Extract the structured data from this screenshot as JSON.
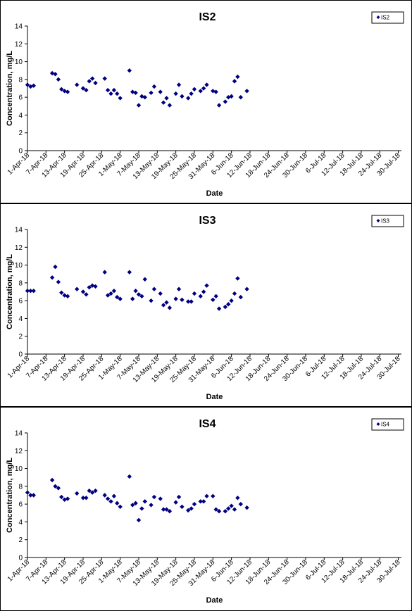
{
  "chart_data": [
    {
      "type": "scatter",
      "title": "IS2",
      "xlabel": "Date",
      "ylabel": "Concentration, mg/L",
      "ylim": [
        0,
        14
      ],
      "yticks": [
        0,
        2,
        4,
        6,
        8,
        10,
        12,
        14
      ],
      "xlim": [
        "2018-04-01",
        "2018-07-31"
      ],
      "xtick_labels": [
        "1-Apr-18",
        "7-Apr-18",
        "13-Apr-18",
        "19-Apr-18",
        "25-Apr-18",
        "1-May-18",
        "7-May-18",
        "13-May-18",
        "19-May-18",
        "25-May-18",
        "31-May-18",
        "6-Jun-18",
        "12-Jun-18",
        "18-Jun-18",
        "24-Jun-18",
        "30-Jun-18",
        "6-Jul-18",
        "12-Jul-18",
        "18-Jul-18",
        "24-Jul-18",
        "30-Jul-18"
      ],
      "grid": false,
      "legend": "top-right",
      "series": [
        {
          "name": "IS2",
          "color": "#000080",
          "marker": "diamond",
          "points": [
            [
              "2018-04-01",
              7.4
            ],
            [
              "2018-04-02",
              7.2
            ],
            [
              "2018-04-03",
              7.3
            ],
            [
              "2018-04-09",
              8.7
            ],
            [
              "2018-04-10",
              8.6
            ],
            [
              "2018-04-11",
              8.0
            ],
            [
              "2018-04-12",
              6.9
            ],
            [
              "2018-04-13",
              6.7
            ],
            [
              "2018-04-14",
              6.6
            ],
            [
              "2018-04-17",
              7.4
            ],
            [
              "2018-04-19",
              7.0
            ],
            [
              "2018-04-20",
              6.8
            ],
            [
              "2018-04-21",
              7.8
            ],
            [
              "2018-04-22",
              8.1
            ],
            [
              "2018-04-23",
              7.6
            ],
            [
              "2018-04-26",
              8.1
            ],
            [
              "2018-04-27",
              6.8
            ],
            [
              "2018-04-28",
              6.4
            ],
            [
              "2018-04-29",
              6.8
            ],
            [
              "2018-04-30",
              6.4
            ],
            [
              "2018-05-01",
              5.9
            ],
            [
              "2018-05-04",
              9.0
            ],
            [
              "2018-05-05",
              6.6
            ],
            [
              "2018-05-06",
              6.5
            ],
            [
              "2018-05-07",
              5.1
            ],
            [
              "2018-05-08",
              6.1
            ],
            [
              "2018-05-09",
              6.0
            ],
            [
              "2018-05-11",
              6.5
            ],
            [
              "2018-05-12",
              7.2
            ],
            [
              "2018-05-14",
              6.6
            ],
            [
              "2018-05-15",
              5.4
            ],
            [
              "2018-05-16",
              5.9
            ],
            [
              "2018-05-17",
              5.1
            ],
            [
              "2018-05-19",
              6.4
            ],
            [
              "2018-05-20",
              7.4
            ],
            [
              "2018-05-21",
              6.1
            ],
            [
              "2018-05-23",
              5.9
            ],
            [
              "2018-05-24",
              6.4
            ],
            [
              "2018-05-25",
              6.9
            ],
            [
              "2018-05-27",
              6.7
            ],
            [
              "2018-05-28",
              7.0
            ],
            [
              "2018-05-29",
              7.4
            ],
            [
              "2018-05-31",
              6.7
            ],
            [
              "2018-06-01",
              6.6
            ],
            [
              "2018-06-02",
              5.1
            ],
            [
              "2018-06-04",
              5.5
            ],
            [
              "2018-06-05",
              6.0
            ],
            [
              "2018-06-06",
              6.1
            ],
            [
              "2018-06-07",
              7.8
            ],
            [
              "2018-06-08",
              8.3
            ],
            [
              "2018-06-09",
              6.0
            ],
            [
              "2018-06-11",
              6.7
            ]
          ]
        }
      ]
    },
    {
      "type": "scatter",
      "title": "IS3",
      "xlabel": "Date",
      "ylabel": "Concentration, mg/L",
      "ylim": [
        0,
        14
      ],
      "yticks": [
        0,
        2,
        4,
        6,
        8,
        10,
        12,
        14
      ],
      "xlim": [
        "2018-04-01",
        "2018-07-31"
      ],
      "xtick_labels": [
        "1-Apr-18",
        "7-Apr-18",
        "13-Apr-18",
        "19-Apr-18",
        "25-Apr-18",
        "1-May-18",
        "7-May-18",
        "13-May-18",
        "19-May-18",
        "25-May-18",
        "31-May-18",
        "6-Jun-18",
        "12-Jun-18",
        "18-Jun-18",
        "24-Jun-18",
        "30-Jun-18",
        "6-Jul-18",
        "12-Jul-18",
        "18-Jul-18",
        "24-Jul-18",
        "30-Jul-18"
      ],
      "grid": false,
      "legend": "top-right",
      "series": [
        {
          "name": "IS3",
          "color": "#000080",
          "marker": "diamond",
          "points": [
            [
              "2018-04-01",
              7.1
            ],
            [
              "2018-04-02",
              7.1
            ],
            [
              "2018-04-03",
              7.1
            ],
            [
              "2018-04-09",
              8.6
            ],
            [
              "2018-04-10",
              9.8
            ],
            [
              "2018-04-11",
              8.1
            ],
            [
              "2018-04-12",
              6.9
            ],
            [
              "2018-04-13",
              6.6
            ],
            [
              "2018-04-14",
              6.5
            ],
            [
              "2018-04-17",
              7.3
            ],
            [
              "2018-04-19",
              7.0
            ],
            [
              "2018-04-20",
              6.7
            ],
            [
              "2018-04-21",
              7.5
            ],
            [
              "2018-04-22",
              7.7
            ],
            [
              "2018-04-23",
              7.6
            ],
            [
              "2018-04-26",
              9.2
            ],
            [
              "2018-04-27",
              6.6
            ],
            [
              "2018-04-28",
              6.8
            ],
            [
              "2018-04-29",
              7.1
            ],
            [
              "2018-04-30",
              6.4
            ],
            [
              "2018-05-01",
              6.2
            ],
            [
              "2018-05-04",
              9.2
            ],
            [
              "2018-05-05",
              6.2
            ],
            [
              "2018-05-06",
              7.1
            ],
            [
              "2018-05-07",
              6.7
            ],
            [
              "2018-05-08",
              6.5
            ],
            [
              "2018-05-09",
              8.4
            ],
            [
              "2018-05-11",
              6.0
            ],
            [
              "2018-05-12",
              7.3
            ],
            [
              "2018-05-14",
              6.8
            ],
            [
              "2018-05-15",
              5.5
            ],
            [
              "2018-05-16",
              5.8
            ],
            [
              "2018-05-17",
              5.2
            ],
            [
              "2018-05-19",
              6.2
            ],
            [
              "2018-05-20",
              7.3
            ],
            [
              "2018-05-21",
              6.1
            ],
            [
              "2018-05-23",
              5.9
            ],
            [
              "2018-05-24",
              5.9
            ],
            [
              "2018-05-25",
              6.8
            ],
            [
              "2018-05-27",
              6.5
            ],
            [
              "2018-05-28",
              7.0
            ],
            [
              "2018-05-29",
              7.7
            ],
            [
              "2018-05-31",
              6.1
            ],
            [
              "2018-06-01",
              6.5
            ],
            [
              "2018-06-02",
              5.1
            ],
            [
              "2018-06-04",
              5.3
            ],
            [
              "2018-06-05",
              5.6
            ],
            [
              "2018-06-06",
              6.0
            ],
            [
              "2018-06-07",
              6.8
            ],
            [
              "2018-06-08",
              8.5
            ],
            [
              "2018-06-09",
              6.4
            ],
            [
              "2018-06-11",
              7.3
            ]
          ]
        }
      ]
    },
    {
      "type": "scatter",
      "title": "IS4",
      "xlabel": "Date",
      "ylabel": "Concentration, mg/L",
      "ylim": [
        0,
        14
      ],
      "yticks": [
        0,
        2,
        4,
        6,
        8,
        10,
        12,
        14
      ],
      "xlim": [
        "2018-04-01",
        "2018-07-31"
      ],
      "xtick_labels": [
        "1-Apr-18",
        "7-Apr-18",
        "13-Apr-18",
        "19-Apr-18",
        "25-Apr-18",
        "1-May-18",
        "7-May-18",
        "13-May-18",
        "19-May-18",
        "25-May-18",
        "31-May-18",
        "6-Jun-18",
        "12-Jun-18",
        "18-Jun-18",
        "24-Jun-18",
        "30-Jun-18",
        "6-Jul-18",
        "12-Jul-18",
        "18-Jul-18",
        "24-Jul-18",
        "30-Jul-18"
      ],
      "grid": false,
      "legend": "top-right",
      "series": [
        {
          "name": "IS4",
          "color": "#000080",
          "marker": "diamond",
          "points": [
            [
              "2018-04-01",
              7.3
            ],
            [
              "2018-04-02",
              7.0
            ],
            [
              "2018-04-03",
              7.0
            ],
            [
              "2018-04-09",
              8.7
            ],
            [
              "2018-04-10",
              8.0
            ],
            [
              "2018-04-11",
              7.8
            ],
            [
              "2018-04-12",
              6.8
            ],
            [
              "2018-04-13",
              6.5
            ],
            [
              "2018-04-14",
              6.6
            ],
            [
              "2018-04-17",
              7.2
            ],
            [
              "2018-04-19",
              6.7
            ],
            [
              "2018-04-20",
              6.7
            ],
            [
              "2018-04-21",
              7.5
            ],
            [
              "2018-04-22",
              7.3
            ],
            [
              "2018-04-23",
              7.5
            ],
            [
              "2018-04-26",
              7.0
            ],
            [
              "2018-04-27",
              6.6
            ],
            [
              "2018-04-28",
              6.3
            ],
            [
              "2018-04-29",
              6.9
            ],
            [
              "2018-04-30",
              6.1
            ],
            [
              "2018-05-01",
              5.7
            ],
            [
              "2018-05-04",
              9.1
            ],
            [
              "2018-05-05",
              5.9
            ],
            [
              "2018-05-06",
              6.1
            ],
            [
              "2018-05-07",
              4.2
            ],
            [
              "2018-05-08",
              5.5
            ],
            [
              "2018-05-09",
              6.3
            ],
            [
              "2018-05-11",
              5.9
            ],
            [
              "2018-05-12",
              6.8
            ],
            [
              "2018-05-14",
              6.6
            ],
            [
              "2018-05-15",
              5.4
            ],
            [
              "2018-05-16",
              5.4
            ],
            [
              "2018-05-17",
              5.2
            ],
            [
              "2018-05-19",
              6.2
            ],
            [
              "2018-05-20",
              6.8
            ],
            [
              "2018-05-21",
              5.7
            ],
            [
              "2018-05-23",
              5.3
            ],
            [
              "2018-05-24",
              5.5
            ],
            [
              "2018-05-25",
              6.0
            ],
            [
              "2018-05-27",
              6.3
            ],
            [
              "2018-05-28",
              6.3
            ],
            [
              "2018-05-29",
              6.9
            ],
            [
              "2018-05-31",
              6.9
            ],
            [
              "2018-06-01",
              5.4
            ],
            [
              "2018-06-02",
              5.2
            ],
            [
              "2018-06-04",
              5.2
            ],
            [
              "2018-06-05",
              5.5
            ],
            [
              "2018-06-06",
              5.8
            ],
            [
              "2018-06-07",
              5.4
            ],
            [
              "2018-06-08",
              6.7
            ],
            [
              "2018-06-09",
              6.0
            ],
            [
              "2018-06-11",
              5.6
            ]
          ]
        }
      ]
    }
  ]
}
